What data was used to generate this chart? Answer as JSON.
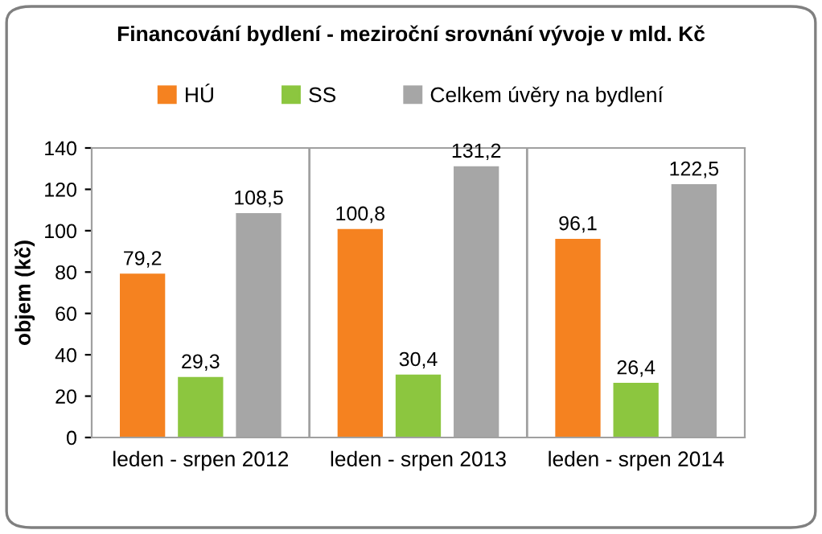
{
  "chart_data": {
    "type": "bar",
    "title": "Financování bydlení - meziroční srovnání vývoje v mld. Kč",
    "ylabel": "objem (kč)",
    "categories": [
      "leden - srpen 2012",
      "leden - srpen 2013",
      "leden - srpen 2014"
    ],
    "series": [
      {
        "name": "HÚ",
        "color": "#f58220",
        "values": [
          79.2,
          100.8,
          96.1
        ],
        "value_labels": [
          "79,2",
          "100,8",
          "96,1"
        ]
      },
      {
        "name": "SS",
        "color": "#8cc63f",
        "values": [
          29.3,
          30.4,
          26.4
        ],
        "value_labels": [
          "29,3",
          "30,4",
          "26,4"
        ]
      },
      {
        "name": "Celkem úvěry na bydlení",
        "color": "#a6a6a6",
        "values": [
          108.5,
          131.2,
          122.5
        ],
        "value_labels": [
          "108,5",
          "131,2",
          "122,5"
        ]
      }
    ],
    "ylim": [
      0,
      140
    ],
    "yticks": [
      0,
      20,
      40,
      60,
      80,
      100,
      120,
      140
    ],
    "grid": false,
    "legend": "top"
  }
}
